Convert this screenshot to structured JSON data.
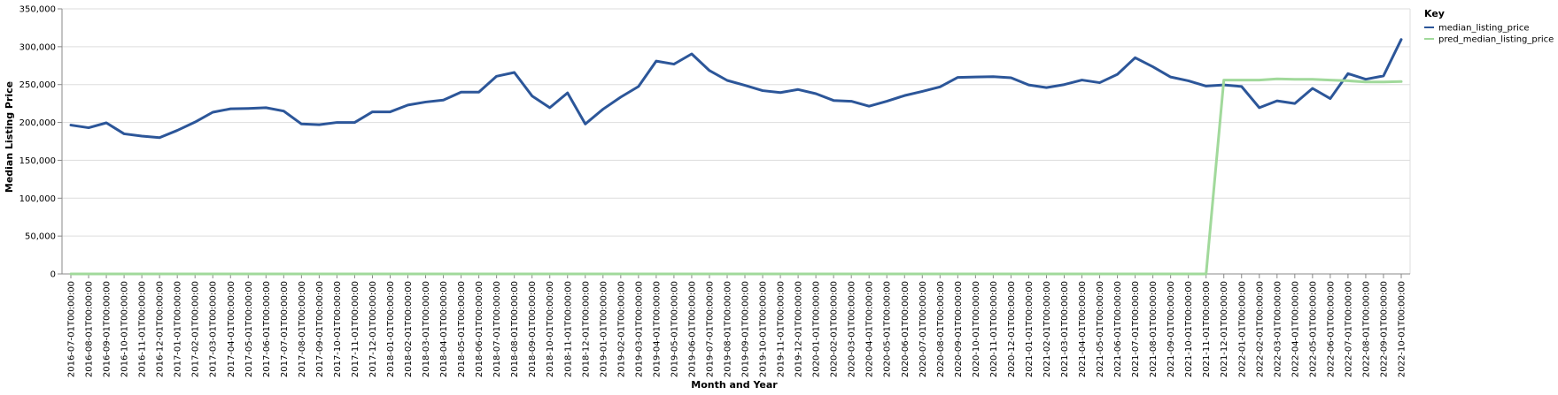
{
  "chart_data": {
    "type": "line",
    "title": "",
    "xlabel": "Month and Year",
    "ylabel": "Median Listing Price",
    "ylim": [
      0,
      350000
    ],
    "y_ticks": [
      "0",
      "50,000",
      "100,000",
      "150,000",
      "200,000",
      "250,000",
      "300,000",
      "350,000"
    ],
    "y_tick_values": [
      0,
      50000,
      100000,
      150000,
      200000,
      250000,
      300000,
      350000
    ],
    "grid": true,
    "legend": {
      "title": "Key",
      "position": "top-right"
    },
    "x": [
      "2016-07-01T00:00:00",
      "2016-08-01T00:00:00",
      "2016-09-01T00:00:00",
      "2016-10-01T00:00:00",
      "2016-11-01T00:00:00",
      "2016-12-01T00:00:00",
      "2017-01-01T00:00:00",
      "2017-02-01T00:00:00",
      "2017-03-01T00:00:00",
      "2017-04-01T00:00:00",
      "2017-05-01T00:00:00",
      "2017-06-01T00:00:00",
      "2017-07-01T00:00:00",
      "2017-08-01T00:00:00",
      "2017-09-01T00:00:00",
      "2017-10-01T00:00:00",
      "2017-11-01T00:00:00",
      "2017-12-01T00:00:00",
      "2018-01-01T00:00:00",
      "2018-02-01T00:00:00",
      "2018-03-01T00:00:00",
      "2018-04-01T00:00:00",
      "2018-05-01T00:00:00",
      "2018-06-01T00:00:00",
      "2018-07-01T00:00:00",
      "2018-08-01T00:00:00",
      "2018-09-01T00:00:00",
      "2018-10-01T00:00:00",
      "2018-11-01T00:00:00",
      "2018-12-01T00:00:00",
      "2019-01-01T00:00:00",
      "2019-02-01T00:00:00",
      "2019-03-01T00:00:00",
      "2019-04-01T00:00:00",
      "2019-05-01T00:00:00",
      "2019-06-01T00:00:00",
      "2019-07-01T00:00:00",
      "2019-08-01T00:00:00",
      "2019-09-01T00:00:00",
      "2019-10-01T00:00:00",
      "2019-11-01T00:00:00",
      "2019-12-01T00:00:00",
      "2020-01-01T00:00:00",
      "2020-02-01T00:00:00",
      "2020-03-01T00:00:00",
      "2020-04-01T00:00:00",
      "2020-05-01T00:00:00",
      "2020-06-01T00:00:00",
      "2020-07-01T00:00:00",
      "2020-08-01T00:00:00",
      "2020-09-01T00:00:00",
      "2020-10-01T00:00:00",
      "2020-11-01T00:00:00",
      "2020-12-01T00:00:00",
      "2021-01-01T00:00:00",
      "2021-02-01T00:00:00",
      "2021-03-01T00:00:00",
      "2021-04-01T00:00:00",
      "2021-05-01T00:00:00",
      "2021-06-01T00:00:00",
      "2021-07-01T00:00:00",
      "2021-08-01T00:00:00",
      "2021-09-01T00:00:00",
      "2021-10-01T00:00:00",
      "2021-11-01T00:00:00",
      "2021-12-01T00:00:00",
      "2022-01-01T00:00:00",
      "2022-02-01T00:00:00",
      "2022-03-01T00:00:00",
      "2022-04-01T00:00:00",
      "2022-05-01T00:00:00",
      "2022-06-01T00:00:00",
      "2022-07-01T00:00:00",
      "2022-08-01T00:00:00",
      "2022-09-01T00:00:00",
      "2022-10-01T00:00:00"
    ],
    "series": [
      {
        "name": "median_listing_price",
        "color": "#2c5699",
        "values": [
          196500,
          193000,
          199500,
          185000,
          182000,
          180000,
          189500,
          200500,
          213500,
          218000,
          218500,
          219500,
          215000,
          198000,
          197000,
          200000,
          200000,
          214000,
          214000,
          223000,
          227000,
          229500,
          240000,
          240000,
          261000,
          266000,
          235000,
          219500,
          239000,
          198000,
          217500,
          233500,
          247500,
          281000,
          277000,
          290500,
          268500,
          255500,
          249000,
          242000,
          239500,
          243500,
          238000,
          229000,
          228000,
          221500,
          228000,
          235500,
          241000,
          247000,
          259500,
          260000,
          260500,
          259000,
          249500,
          246000,
          250000,
          256000,
          252500,
          263500,
          285500,
          273500,
          260000,
          255000,
          248000,
          249500,
          247500,
          219500,
          228500,
          225000,
          245000,
          231500,
          264500,
          257000,
          261500,
          309500
        ]
      },
      {
        "name": "pred_median_listing_price",
        "color": "#a1d99b",
        "values": [
          0,
          0,
          0,
          0,
          0,
          0,
          0,
          0,
          0,
          0,
          0,
          0,
          0,
          0,
          0,
          0,
          0,
          0,
          0,
          0,
          0,
          0,
          0,
          0,
          0,
          0,
          0,
          0,
          0,
          0,
          0,
          0,
          0,
          0,
          0,
          0,
          0,
          0,
          0,
          0,
          0,
          0,
          0,
          0,
          0,
          0,
          0,
          0,
          0,
          0,
          0,
          0,
          0,
          0,
          0,
          0,
          0,
          0,
          0,
          0,
          0,
          0,
          0,
          0,
          0,
          256000,
          256000,
          256000,
          257500,
          257000,
          257000,
          256000,
          255000,
          253500,
          253500,
          254000
        ]
      }
    ]
  }
}
